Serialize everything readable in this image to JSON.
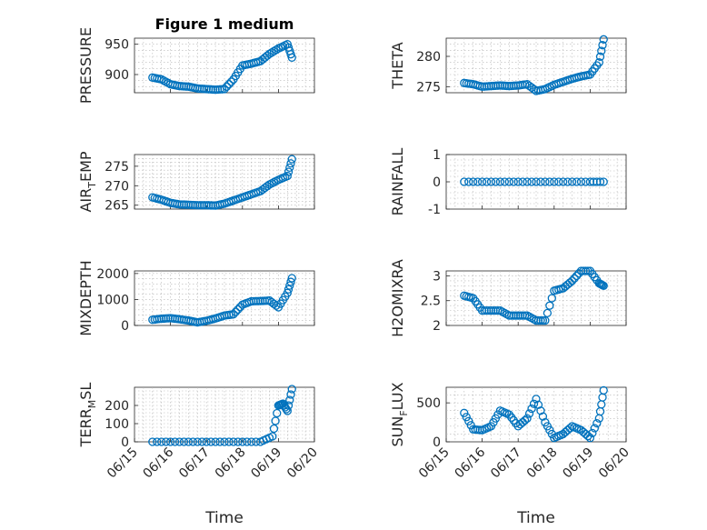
{
  "chart_data": [
    {
      "type": "scatter",
      "title": "Figure 1 medium",
      "ylabel": "PRESSURE",
      "xlabel": "",
      "xlim": [
        "2023-06-15",
        "2023-06-20"
      ],
      "ylim": [
        870,
        960
      ],
      "yticks": [
        900,
        950
      ],
      "grid": true,
      "series": [
        {
          "x": [
            "2023-06-15T12:00",
            "2023-06-15T18:00",
            "2023-06-16T00:00",
            "2023-06-16T06:00",
            "2023-06-16T12:00",
            "2023-06-16T18:00",
            "2023-06-17T00:00",
            "2023-06-17T06:00",
            "2023-06-17T12:00",
            "2023-06-17T18:00",
            "2023-06-18T00:00",
            "2023-06-18T06:00",
            "2023-06-18T12:00",
            "2023-06-18T18:00",
            "2023-06-19T00:00",
            "2023-06-19T06:00",
            "2023-06-19T09:00"
          ],
          "y": [
            895,
            892,
            884,
            881,
            880,
            877,
            876,
            875,
            876,
            892,
            915,
            918,
            922,
            934,
            943,
            950,
            928
          ]
        }
      ]
    },
    {
      "type": "scatter",
      "title": "",
      "ylabel": "THETA",
      "xlabel": "",
      "xlim": [
        "2023-06-15",
        "2023-06-20"
      ],
      "ylim": [
        274,
        283
      ],
      "yticks": [
        275,
        280
      ],
      "grid": true,
      "series": [
        {
          "x": [
            "2023-06-15T12:00",
            "2023-06-15T18:00",
            "2023-06-16T00:00",
            "2023-06-16T06:00",
            "2023-06-16T12:00",
            "2023-06-16T18:00",
            "2023-06-17T00:00",
            "2023-06-17T06:00",
            "2023-06-17T12:00",
            "2023-06-17T18:00",
            "2023-06-18T00:00",
            "2023-06-18T06:00",
            "2023-06-18T12:00",
            "2023-06-18T18:00",
            "2023-06-19T00:00",
            "2023-06-19T06:00",
            "2023-06-19T09:00"
          ],
          "y": [
            275.6,
            275.4,
            275.0,
            275.1,
            275.2,
            275.1,
            275.2,
            275.4,
            274.3,
            274.6,
            275.3,
            275.8,
            276.3,
            276.7,
            277.0,
            279.0,
            282.8
          ]
        }
      ]
    },
    {
      "type": "scatter",
      "title": "",
      "ylabel": "AIR",
      "ylabel_sub": "T",
      "ylabel_rest": "EMP",
      "xlabel": "",
      "xlim": [
        "2023-06-15",
        "2023-06-20"
      ],
      "ylim": [
        264,
        278
      ],
      "yticks": [
        265,
        270,
        275
      ],
      "grid": true,
      "series": [
        {
          "x": [
            "2023-06-15T12:00",
            "2023-06-15T18:00",
            "2023-06-16T00:00",
            "2023-06-16T06:00",
            "2023-06-16T12:00",
            "2023-06-16T18:00",
            "2023-06-17T00:00",
            "2023-06-17T06:00",
            "2023-06-17T12:00",
            "2023-06-17T18:00",
            "2023-06-18T00:00",
            "2023-06-18T06:00",
            "2023-06-18T12:00",
            "2023-06-18T18:00",
            "2023-06-19T00:00",
            "2023-06-19T06:00",
            "2023-06-19T09:00"
          ],
          "y": [
            267.0,
            266.4,
            265.6,
            265.2,
            265.1,
            265.0,
            265.0,
            264.9,
            265.4,
            266.2,
            267.0,
            267.8,
            268.6,
            270.3,
            271.5,
            272.5,
            276.8
          ]
        }
      ]
    },
    {
      "type": "scatter",
      "title": "",
      "ylabel": "RAINFALL",
      "xlabel": "",
      "xlim": [
        "2023-06-15",
        "2023-06-20"
      ],
      "ylim": [
        -1,
        1
      ],
      "yticks": [
        -1,
        0,
        1
      ],
      "grid": true,
      "series": [
        {
          "x": [
            "2023-06-15T12:00",
            "2023-06-16T00:00",
            "2023-06-16T12:00",
            "2023-06-17T00:00",
            "2023-06-17T12:00",
            "2023-06-18T00:00",
            "2023-06-18T12:00",
            "2023-06-19T00:00",
            "2023-06-19T09:00"
          ],
          "y": [
            0,
            0,
            0,
            0,
            0,
            0,
            0,
            0,
            0
          ]
        }
      ]
    },
    {
      "type": "scatter",
      "title": "",
      "ylabel": "MIXDEPTH",
      "xlabel": "",
      "xlim": [
        "2023-06-15",
        "2023-06-20"
      ],
      "ylim": [
        0,
        2100
      ],
      "yticks": [
        0,
        1000,
        2000
      ],
      "grid": true,
      "series": [
        {
          "x": [
            "2023-06-15T12:00",
            "2023-06-15T18:00",
            "2023-06-16T00:00",
            "2023-06-16T06:00",
            "2023-06-16T12:00",
            "2023-06-16T18:00",
            "2023-06-17T00:00",
            "2023-06-17T06:00",
            "2023-06-17T12:00",
            "2023-06-17T18:00",
            "2023-06-18T00:00",
            "2023-06-18T06:00",
            "2023-06-18T12:00",
            "2023-06-18T18:00",
            "2023-06-19T00:00",
            "2023-06-19T06:00",
            "2023-06-19T09:00"
          ],
          "y": [
            220,
            260,
            280,
            240,
            190,
            120,
            180,
            270,
            380,
            430,
            800,
            930,
            940,
            960,
            700,
            1250,
            1820
          ]
        }
      ]
    },
    {
      "type": "scatter",
      "title": "",
      "ylabel": "H2OMIXRA",
      "xlabel": "",
      "xlim": [
        "2023-06-15",
        "2023-06-20"
      ],
      "ylim": [
        2,
        3.1
      ],
      "yticks": [
        2,
        2.5,
        3
      ],
      "grid": true,
      "series": [
        {
          "x": [
            "2023-06-15T12:00",
            "2023-06-15T18:00",
            "2023-06-16T00:00",
            "2023-06-16T06:00",
            "2023-06-16T12:00",
            "2023-06-16T18:00",
            "2023-06-17T00:00",
            "2023-06-17T06:00",
            "2023-06-17T12:00",
            "2023-06-17T18:00",
            "2023-06-18T00:00",
            "2023-06-18T06:00",
            "2023-06-18T12:00",
            "2023-06-18T18:00",
            "2023-06-19T00:00",
            "2023-06-19T06:00",
            "2023-06-19T09:00"
          ],
          "y": [
            2.6,
            2.55,
            2.3,
            2.3,
            2.3,
            2.2,
            2.2,
            2.2,
            2.1,
            2.1,
            2.7,
            2.75,
            2.9,
            3.1,
            3.1,
            2.85,
            2.8
          ]
        }
      ]
    },
    {
      "type": "scatter",
      "title": "",
      "ylabel": "TERR",
      "ylabel_sub": "M",
      "ylabel_rest": "SL",
      "xlabel": "Time",
      "xlim": [
        "2023-06-15",
        "2023-06-20"
      ],
      "ylim": [
        0,
        300
      ],
      "yticks": [
        0,
        100,
        200
      ],
      "xticklabels": [
        "06/15",
        "06/16",
        "06/17",
        "06/18",
        "06/19",
        "06/20"
      ],
      "grid": true,
      "series": [
        {
          "x": [
            "2023-06-15T12:00",
            "2023-06-16T00:00",
            "2023-06-16T12:00",
            "2023-06-17T00:00",
            "2023-06-17T12:00",
            "2023-06-18T00:00",
            "2023-06-18T12:00",
            "2023-06-18T20:00",
            "2023-06-19T00:00",
            "2023-06-19T03:00",
            "2023-06-19T06:00",
            "2023-06-19T09:00"
          ],
          "y": [
            0,
            0,
            0,
            0,
            0,
            0,
            0,
            30,
            200,
            210,
            170,
            290
          ]
        }
      ]
    },
    {
      "type": "scatter",
      "title": "",
      "ylabel": "SUN",
      "ylabel_sub": "F",
      "ylabel_rest": "LUX",
      "xlabel": "Time",
      "xlim": [
        "2023-06-15",
        "2023-06-20"
      ],
      "ylim": [
        0,
        700
      ],
      "yticks": [
        0,
        500
      ],
      "xticklabels": [
        "06/15",
        "06/16",
        "06/17",
        "06/18",
        "06/19",
        "06/20"
      ],
      "grid": true,
      "series": [
        {
          "x": [
            "2023-06-15T12:00",
            "2023-06-15T18:00",
            "2023-06-16T00:00",
            "2023-06-16T06:00",
            "2023-06-16T12:00",
            "2023-06-16T18:00",
            "2023-06-17T00:00",
            "2023-06-17T06:00",
            "2023-06-17T12:00",
            "2023-06-17T18:00",
            "2023-06-18T00:00",
            "2023-06-18T06:00",
            "2023-06-18T12:00",
            "2023-06-18T18:00",
            "2023-06-19T00:00",
            "2023-06-19T06:00",
            "2023-06-19T09:00"
          ],
          "y": [
            370,
            160,
            150,
            200,
            400,
            350,
            200,
            300,
            550,
            250,
            50,
            100,
            200,
            150,
            50,
            300,
            660
          ]
        }
      ]
    }
  ]
}
